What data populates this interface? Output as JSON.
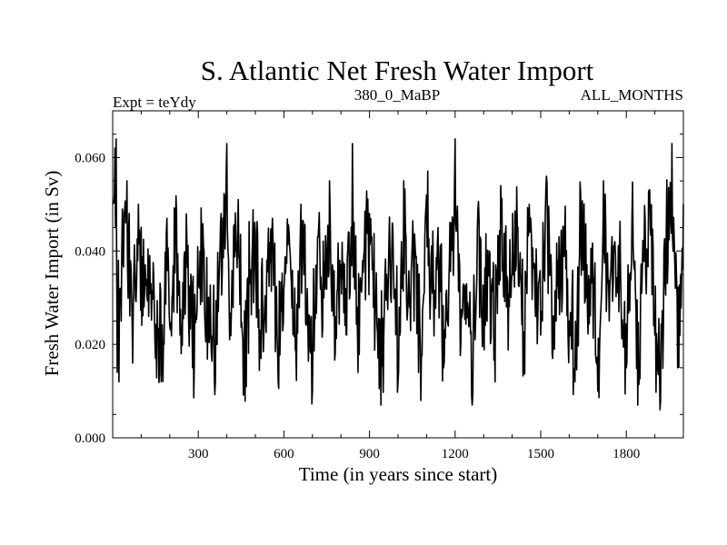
{
  "chart_data": {
    "type": "line",
    "title": "S. Atlantic Net Fresh Water Import",
    "subtitle_left": "Expt = teYdy",
    "subtitle_center": "380_0_MaBP",
    "subtitle_right": "ALL_MONTHS",
    "xlabel": "Time (in years since start)",
    "ylabel": "Fresh Water Import (in Sv)",
    "xlim": [
      0,
      2000
    ],
    "ylim": [
      0.0,
      0.07
    ],
    "xticks": [
      300,
      600,
      900,
      1200,
      1500,
      1800
    ],
    "xtick_labels": [
      "300",
      "600",
      "900",
      "1200",
      "1500",
      "1800"
    ],
    "yticks": [
      0.0,
      0.02,
      0.04,
      0.06
    ],
    "ytick_labels": [
      "0.000",
      "0.020",
      "0.040",
      "0.060"
    ],
    "grid": false,
    "line_color": "#000000",
    "series": [
      {
        "name": "S. Atlantic net fresh water import",
        "mean": 0.032,
        "min": 0.006,
        "max": 0.064,
        "x": [
          0,
          8,
          12,
          16,
          20,
          22,
          26,
          30,
          34,
          50,
          70,
          90,
          110,
          130,
          150,
          170,
          180,
          190,
          200,
          220,
          240,
          260,
          280,
          300,
          320,
          340,
          360,
          380,
          400,
          410,
          420,
          440,
          460,
          480,
          500,
          520,
          540,
          560,
          580,
          600,
          620,
          640,
          660,
          680,
          700,
          720,
          740,
          760,
          780,
          800,
          820,
          840,
          860,
          880,
          900,
          920,
          940,
          960,
          980,
          1000,
          1020,
          1040,
          1060,
          1080,
          1100,
          1120,
          1140,
          1160,
          1180,
          1200,
          1220,
          1240,
          1260,
          1280,
          1300,
          1320,
          1340,
          1360,
          1380,
          1400,
          1420,
          1440,
          1460,
          1480,
          1500,
          1520,
          1540,
          1560,
          1580,
          1600,
          1620,
          1640,
          1660,
          1680,
          1700,
          1720,
          1740,
          1760,
          1780,
          1800,
          1820,
          1840,
          1860,
          1880,
          1900,
          1920,
          1940,
          1960,
          1980,
          2000
        ],
        "values": [
          0.05,
          0.062,
          0.064,
          0.014,
          0.038,
          0.012,
          0.032,
          0.025,
          0.049,
          0.055,
          0.016,
          0.05,
          0.028,
          0.039,
          0.017,
          0.012,
          0.02,
          0.047,
          0.024,
          0.045,
          0.018,
          0.043,
          0.015,
          0.034,
          0.04,
          0.022,
          0.012,
          0.048,
          0.063,
          0.021,
          0.035,
          0.051,
          0.01,
          0.033,
          0.044,
          0.017,
          0.038,
          0.047,
          0.012,
          0.032,
          0.041,
          0.019,
          0.05,
          0.025,
          0.01,
          0.043,
          0.03,
          0.055,
          0.018,
          0.037,
          0.022,
          0.063,
          0.014,
          0.039,
          0.048,
          0.027,
          0.007,
          0.035,
          0.046,
          0.012,
          0.055,
          0.028,
          0.041,
          0.008,
          0.052,
          0.031,
          0.045,
          0.015,
          0.038,
          0.064,
          0.02,
          0.033,
          0.007,
          0.049,
          0.025,
          0.04,
          0.012,
          0.054,
          0.028,
          0.035,
          0.045,
          0.015,
          0.05,
          0.03,
          0.022,
          0.056,
          0.018,
          0.038,
          0.045,
          0.025,
          0.012,
          0.052,
          0.03,
          0.04,
          0.01,
          0.055,
          0.025,
          0.042,
          0.035,
          0.015,
          0.048,
          0.007,
          0.038,
          0.053,
          0.022,
          0.008,
          0.045,
          0.063,
          0.015,
          0.05
        ]
      }
    ]
  }
}
